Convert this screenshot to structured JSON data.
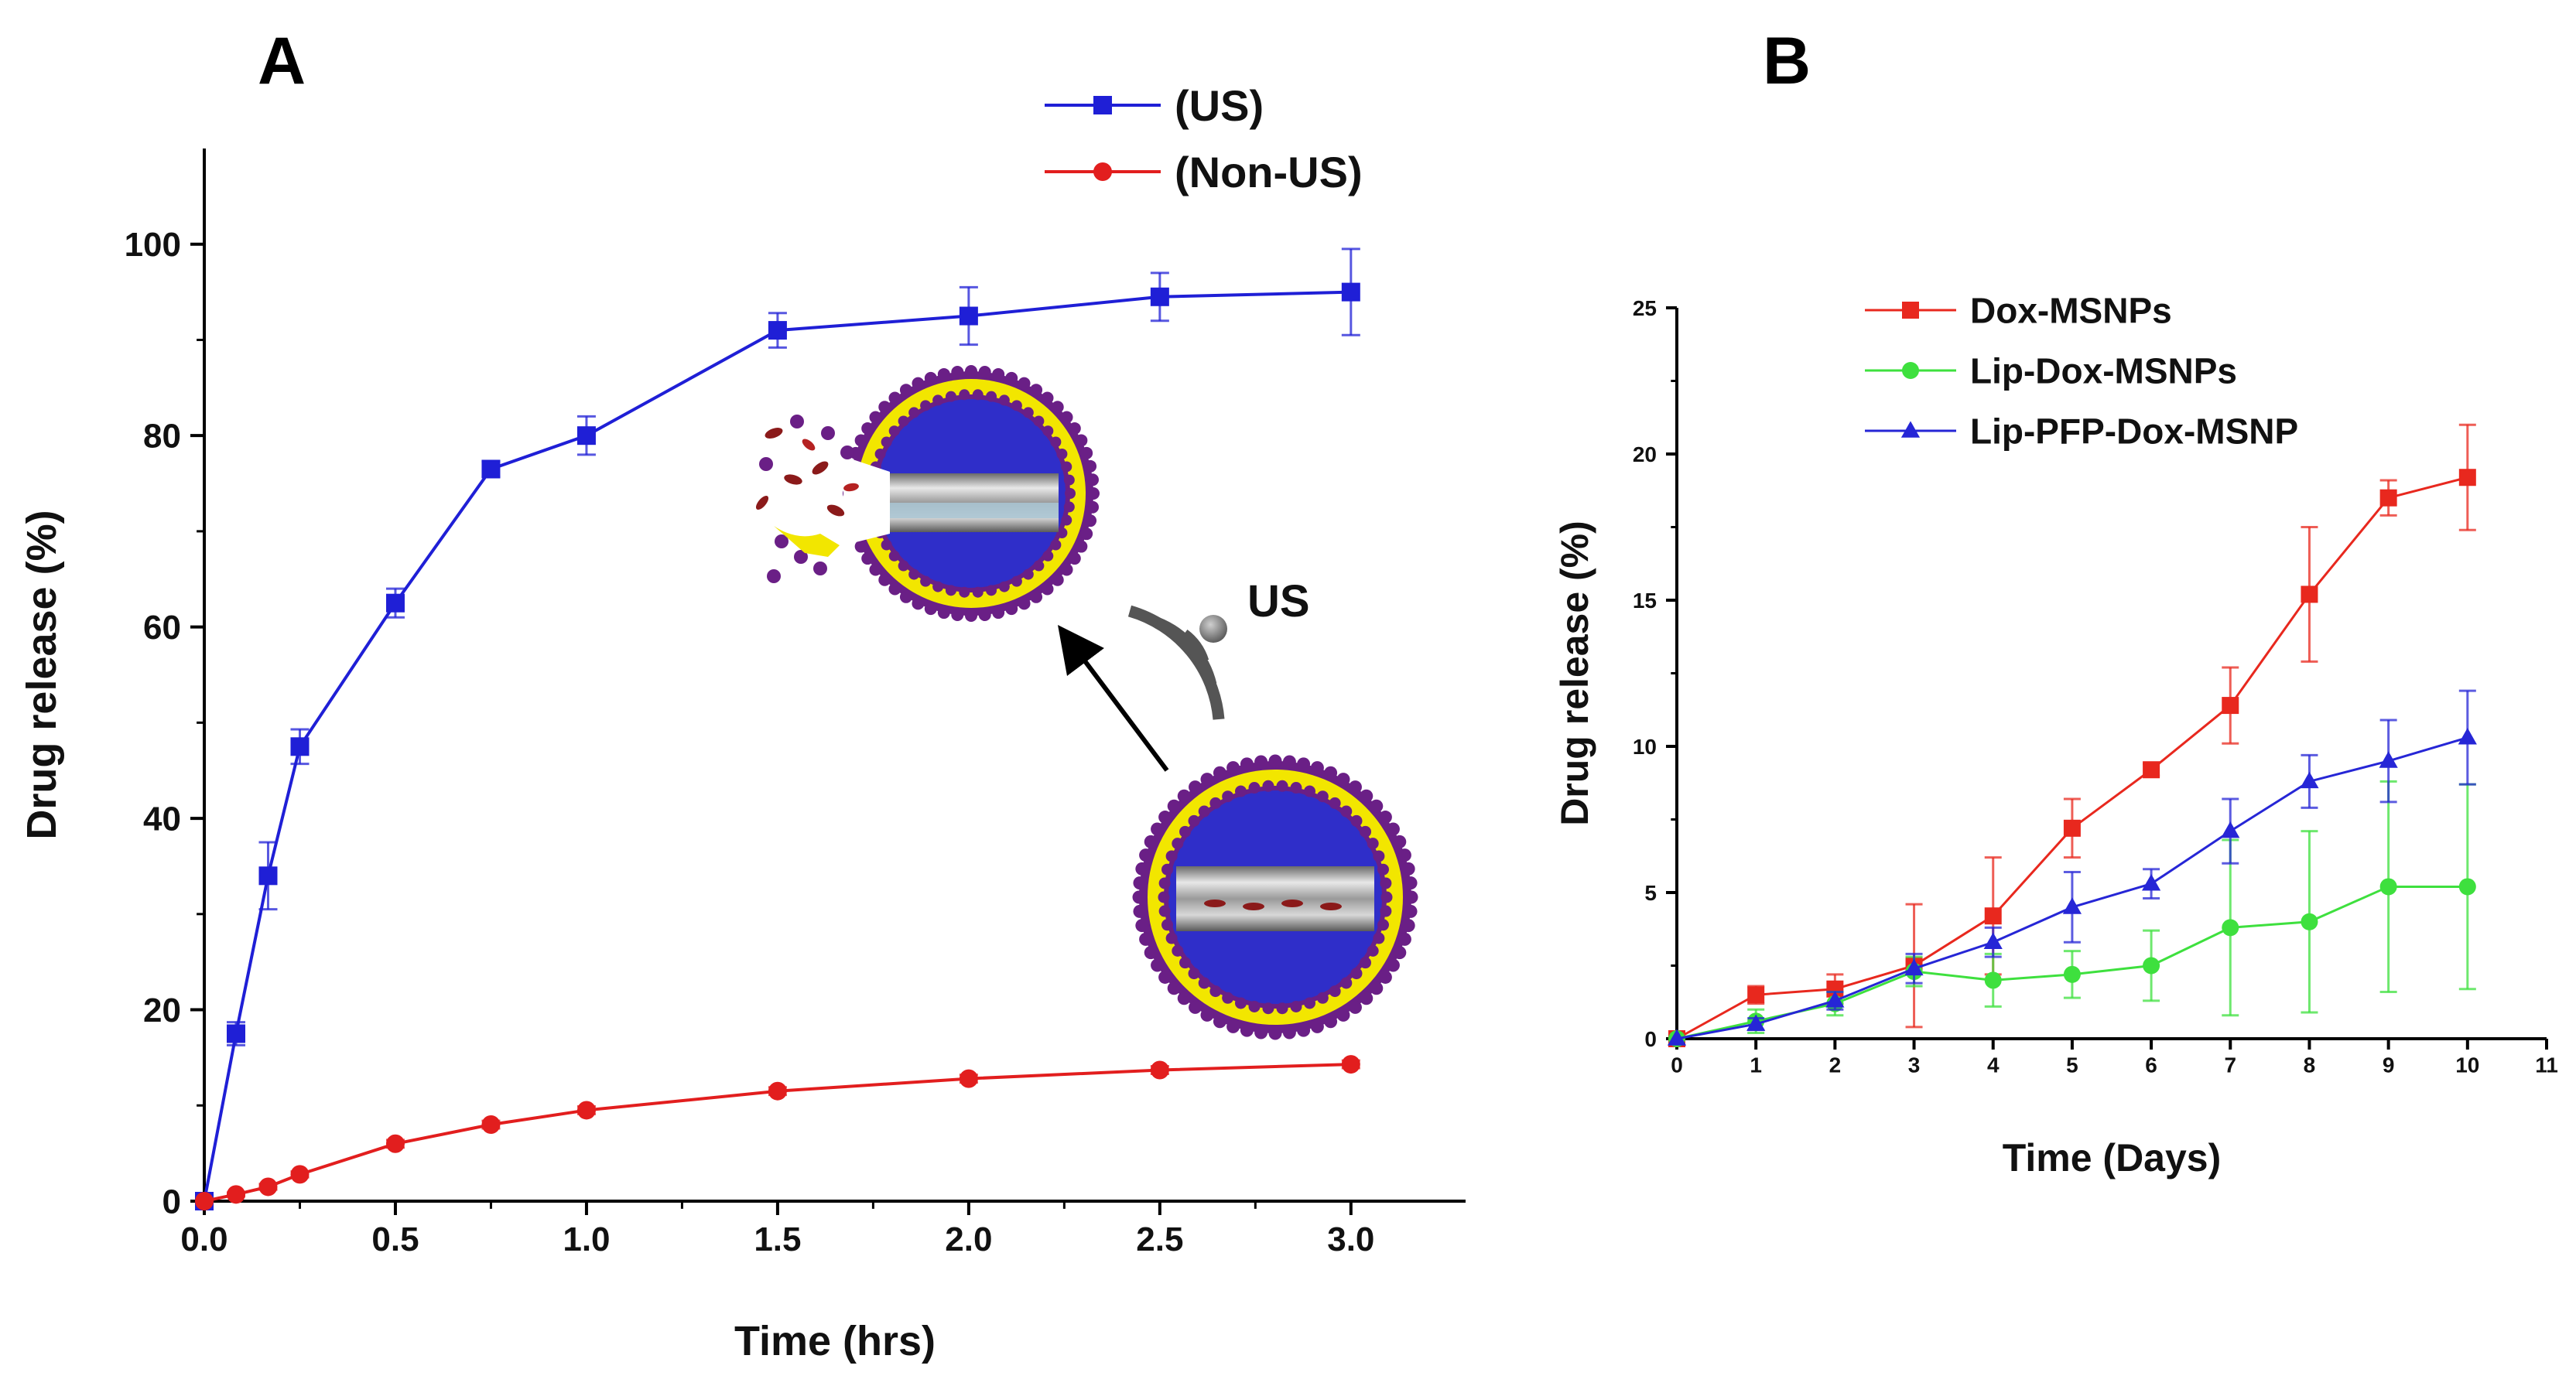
{
  "panel_a": {
    "letter": "A",
    "us_label": "US"
  },
  "panel_b": {
    "letter": "B"
  },
  "chart_data": [
    {
      "type": "line",
      "panel": "A",
      "xlabel": "Time (hrs)",
      "ylabel": "Drug release (%)",
      "xlim": [
        0,
        3.3
      ],
      "ylim": [
        0,
        110
      ],
      "xticks": [
        0.0,
        0.5,
        1.0,
        1.5,
        2.0,
        2.5,
        3.0
      ],
      "xtick_labels": [
        "0.0",
        "0.5",
        "1.0",
        "1.5",
        "2.0",
        "2.5",
        "3.0"
      ],
      "yticks": [
        0,
        20,
        40,
        60,
        80,
        100
      ],
      "ytick_labels": [
        "0",
        "20",
        "40",
        "60",
        "80",
        "100"
      ],
      "legend_position": "top-right",
      "series": [
        {
          "name": "(US)",
          "color": "#1f1fd6",
          "marker": "square",
          "x": [
            0,
            0.083,
            0.167,
            0.25,
            0.5,
            0.75,
            1.0,
            1.5,
            2.0,
            2.5,
            3.0
          ],
          "y": [
            0,
            17.5,
            34,
            47.5,
            62.5,
            76.5,
            80,
            91,
            92.5,
            94.5,
            95
          ],
          "err": [
            0,
            1.2,
            3.5,
            1.8,
            1.5,
            0.8,
            2.0,
            1.8,
            3.0,
            2.5,
            4.5
          ]
        },
        {
          "name": "(Non-US)",
          "color": "#e21e1e",
          "marker": "circle",
          "x": [
            0,
            0.083,
            0.167,
            0.25,
            0.5,
            0.75,
            1.0,
            1.5,
            2.0,
            2.5,
            3.0
          ],
          "y": [
            0,
            0.7,
            1.5,
            2.8,
            6,
            8,
            9.5,
            11.5,
            12.8,
            13.7,
            14.3
          ],
          "err": [
            0,
            0.2,
            0.3,
            0.3,
            0.4,
            0.4,
            0.4,
            0.4,
            0.4,
            0.4,
            0.4
          ]
        }
      ]
    },
    {
      "type": "line",
      "panel": "B",
      "xlabel": "Time (Days)",
      "ylabel": "Drug release (%)",
      "xlim": [
        0,
        11
      ],
      "ylim": [
        0,
        25
      ],
      "xticks": [
        0,
        1,
        2,
        3,
        4,
        5,
        6,
        7,
        8,
        9,
        10,
        11
      ],
      "xtick_labels": [
        "0",
        "1",
        "2",
        "3",
        "4",
        "5",
        "6",
        "7",
        "8",
        "9",
        "10",
        "11"
      ],
      "yticks": [
        0,
        5,
        10,
        15,
        20,
        25
      ],
      "ytick_labels": [
        "0",
        "5",
        "10",
        "15",
        "20",
        "25"
      ],
      "legend_position": "top-left",
      "series": [
        {
          "name": "Dox-MSNPs",
          "color": "#e8281e",
          "marker": "square",
          "x": [
            0,
            1,
            2,
            3,
            4,
            5,
            6,
            7,
            8,
            9,
            10
          ],
          "y": [
            0,
            1.5,
            1.7,
            2.5,
            4.2,
            7.2,
            9.2,
            11.4,
            15.2,
            18.5,
            19.2
          ],
          "err": [
            0,
            0.3,
            0.5,
            2.1,
            2.0,
            1.0,
            0.2,
            1.3,
            2.3,
            0.6,
            1.8
          ]
        },
        {
          "name": "Lip-Dox-MSNPs",
          "color": "#3ee03e",
          "marker": "circle",
          "x": [
            0,
            1,
            2,
            3,
            4,
            5,
            6,
            7,
            8,
            9,
            10
          ],
          "y": [
            0,
            0.6,
            1.2,
            2.3,
            2.0,
            2.2,
            2.5,
            3.8,
            4.0,
            5.2,
            5.2
          ],
          "err": [
            0,
            0.4,
            0.4,
            0.5,
            0.9,
            0.8,
            1.2,
            3.0,
            3.1,
            3.6,
            3.5
          ]
        },
        {
          "name": "Lip-PFP-Dox-MSNP",
          "color": "#2626d6",
          "marker": "triangle",
          "x": [
            0,
            1,
            2,
            3,
            4,
            5,
            6,
            7,
            8,
            9,
            10
          ],
          "y": [
            0,
            0.5,
            1.3,
            2.4,
            3.3,
            4.5,
            5.3,
            7.1,
            8.8,
            9.5,
            10.3
          ],
          "err": [
            0,
            0.2,
            0.3,
            0.5,
            0.5,
            1.2,
            0.5,
            1.1,
            0.9,
            1.4,
            1.6
          ]
        }
      ]
    }
  ]
}
